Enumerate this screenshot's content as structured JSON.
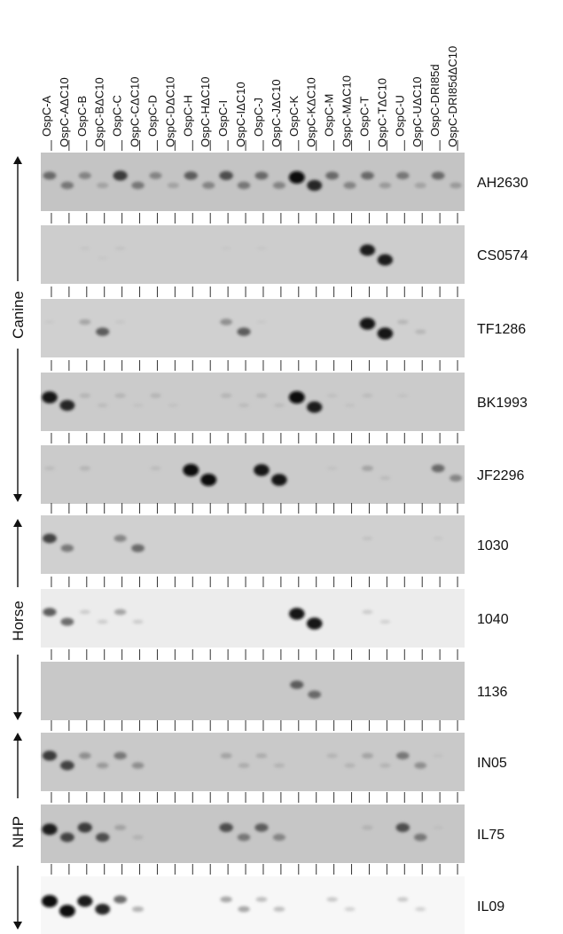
{
  "lanes": [
    "OspC-A",
    "OspC-AΔC10",
    "OspC-B",
    "OspC-BΔC10",
    "OspC-C",
    "OspC-CΔC10",
    "OspC-D",
    "OspC-DΔC10",
    "OspC-H",
    "OspC-HΔC10",
    "OspC-I",
    "OspC-IΔC10",
    "OspC-J",
    "OspC-JΔC10",
    "OspC-K",
    "OspC-KΔC10",
    "OspC-M",
    "OspC-MΔC10",
    "OspC-T",
    "OspC-TΔC10",
    "OspC-U",
    "OspC-UΔC10",
    "OspC-DRI85d",
    "OspC-DRI85dΔC10"
  ],
  "groups": [
    {
      "label": "Canine"
    },
    {
      "label": "Horse"
    },
    {
      "label": "NHP"
    }
  ],
  "blots": [
    {
      "label": "AH2630",
      "bg": "#c4c4c4",
      "bands": [
        [
          0,
          0.55
        ],
        [
          1,
          0.5
        ],
        [
          2,
          0.45
        ],
        [
          3,
          0.3
        ],
        [
          4,
          0.75
        ],
        [
          5,
          0.5
        ],
        [
          6,
          0.45
        ],
        [
          7,
          0.3
        ],
        [
          8,
          0.6
        ],
        [
          9,
          0.45
        ],
        [
          10,
          0.65
        ],
        [
          11,
          0.5
        ],
        [
          12,
          0.55
        ],
        [
          13,
          0.45
        ],
        [
          14,
          1.0
        ],
        [
          15,
          0.85
        ],
        [
          16,
          0.55
        ],
        [
          17,
          0.45
        ],
        [
          18,
          0.55
        ],
        [
          19,
          0.35
        ],
        [
          20,
          0.5
        ],
        [
          21,
          0.3
        ],
        [
          22,
          0.55
        ],
        [
          23,
          0.35
        ]
      ]
    },
    {
      "label": "CS0574",
      "bg": "#cdcdcd",
      "bands": [
        [
          2,
          0.08
        ],
        [
          3,
          0.06
        ],
        [
          4,
          0.1
        ],
        [
          10,
          0.06
        ],
        [
          12,
          0.07
        ],
        [
          18,
          0.9
        ],
        [
          19,
          0.9
        ]
      ]
    },
    {
      "label": "TF1286",
      "bg": "#d0d0d0",
      "bands": [
        [
          0,
          0.06
        ],
        [
          2,
          0.3
        ],
        [
          3,
          0.6
        ],
        [
          4,
          0.08
        ],
        [
          10,
          0.4
        ],
        [
          11,
          0.6
        ],
        [
          12,
          0.06
        ],
        [
          18,
          0.95
        ],
        [
          19,
          0.95
        ],
        [
          20,
          0.2
        ],
        [
          21,
          0.2
        ]
      ]
    },
    {
      "label": "BK1993",
      "bg": "#cbcbcb",
      "bands": [
        [
          0,
          0.95
        ],
        [
          1,
          0.85
        ],
        [
          2,
          0.2
        ],
        [
          3,
          0.15
        ],
        [
          4,
          0.2
        ],
        [
          5,
          0.1
        ],
        [
          6,
          0.2
        ],
        [
          7,
          0.1
        ],
        [
          10,
          0.2
        ],
        [
          11,
          0.15
        ],
        [
          12,
          0.2
        ],
        [
          13,
          0.15
        ],
        [
          14,
          1.0
        ],
        [
          15,
          0.9
        ],
        [
          16,
          0.12
        ],
        [
          17,
          0.1
        ],
        [
          18,
          0.15
        ],
        [
          20,
          0.1
        ]
      ]
    },
    {
      "label": "JF2296",
      "bg": "#cbcbcb",
      "bands": [
        [
          0,
          0.15
        ],
        [
          2,
          0.2
        ],
        [
          6,
          0.15
        ],
        [
          8,
          1.0
        ],
        [
          9,
          1.0
        ],
        [
          12,
          0.95
        ],
        [
          13,
          0.95
        ],
        [
          16,
          0.1
        ],
        [
          18,
          0.3
        ],
        [
          19,
          0.15
        ],
        [
          22,
          0.55
        ],
        [
          23,
          0.45
        ]
      ]
    },
    {
      "label": "1030",
      "bg": "#d0d0d0",
      "bands": [
        [
          0,
          0.7
        ],
        [
          1,
          0.5
        ],
        [
          4,
          0.45
        ],
        [
          5,
          0.55
        ],
        [
          18,
          0.12
        ],
        [
          22,
          0.08
        ]
      ]
    },
    {
      "label": "1040",
      "bg": "#ececec",
      "bands": [
        [
          0,
          0.6
        ],
        [
          1,
          0.55
        ],
        [
          2,
          0.15
        ],
        [
          3,
          0.15
        ],
        [
          4,
          0.35
        ],
        [
          5,
          0.15
        ],
        [
          14,
          0.95
        ],
        [
          15,
          0.95
        ],
        [
          18,
          0.15
        ],
        [
          19,
          0.12
        ]
      ]
    },
    {
      "label": "1136",
      "bg": "#c8c8c8",
      "bands": [
        [
          14,
          0.6
        ],
        [
          15,
          0.55
        ]
      ]
    },
    {
      "label": "IN05",
      "bg": "#c9c9c9",
      "bands": [
        [
          0,
          0.75
        ],
        [
          1,
          0.7
        ],
        [
          2,
          0.4
        ],
        [
          3,
          0.35
        ],
        [
          4,
          0.5
        ],
        [
          5,
          0.4
        ],
        [
          10,
          0.3
        ],
        [
          11,
          0.25
        ],
        [
          12,
          0.25
        ],
        [
          13,
          0.2
        ],
        [
          16,
          0.2
        ],
        [
          17,
          0.2
        ],
        [
          18,
          0.3
        ],
        [
          19,
          0.2
        ],
        [
          20,
          0.5
        ],
        [
          21,
          0.4
        ],
        [
          22,
          0.1
        ]
      ]
    },
    {
      "label": "IL75",
      "bg": "#c6c6c6",
      "bands": [
        [
          0,
          0.9
        ],
        [
          1,
          0.7
        ],
        [
          2,
          0.75
        ],
        [
          3,
          0.65
        ],
        [
          4,
          0.3
        ],
        [
          5,
          0.2
        ],
        [
          10,
          0.65
        ],
        [
          11,
          0.5
        ],
        [
          12,
          0.6
        ],
        [
          13,
          0.45
        ],
        [
          18,
          0.2
        ],
        [
          20,
          0.65
        ],
        [
          21,
          0.5
        ],
        [
          22,
          0.1
        ]
      ]
    },
    {
      "label": "IL09",
      "bg": "#f7f7f7",
      "bands": [
        [
          0,
          1.0
        ],
        [
          1,
          1.0
        ],
        [
          2,
          0.9
        ],
        [
          3,
          0.85
        ],
        [
          4,
          0.55
        ],
        [
          5,
          0.3
        ],
        [
          10,
          0.35
        ],
        [
          11,
          0.35
        ],
        [
          12,
          0.25
        ],
        [
          13,
          0.25
        ],
        [
          16,
          0.2
        ],
        [
          17,
          0.15
        ],
        [
          20,
          0.2
        ],
        [
          21,
          0.15
        ]
      ]
    }
  ]
}
